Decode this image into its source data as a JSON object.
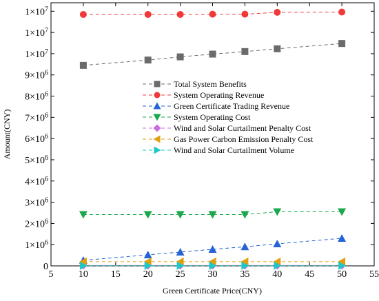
{
  "chart_data": {
    "type": "line",
    "xlabel": "Green Certificate Price(CNY)",
    "ylabel": "Amount(CNY)",
    "xlim": [
      5,
      55
    ],
    "x_ticks": [
      5,
      10,
      15,
      20,
      25,
      30,
      35,
      40,
      45,
      50,
      55
    ],
    "ylim": [
      0,
      12400000
    ],
    "y_ticks": [
      {
        "value": 0,
        "label": "0"
      },
      {
        "value": 1000000,
        "label": "1×10^6"
      },
      {
        "value": 2000000,
        "label": "2×10^6"
      },
      {
        "value": 3000000,
        "label": "3×10^6"
      },
      {
        "value": 4000000,
        "label": "4×10^6"
      },
      {
        "value": 5000000,
        "label": "5×10^6"
      },
      {
        "value": 6000000,
        "label": "6×10^6"
      },
      {
        "value": 7000000,
        "label": "7×10^6"
      },
      {
        "value": 8000000,
        "label": "8×10^6"
      },
      {
        "value": 9000000,
        "label": "9×10^6"
      },
      {
        "value": 10000000,
        "label": "1×10^7"
      },
      {
        "value": 11000000,
        "label": "1×10^7"
      },
      {
        "value": 12000000,
        "label": "1×10^7"
      }
    ],
    "grid": false,
    "legend_position": "center-right",
    "x": [
      10,
      20,
      25,
      30,
      35,
      40,
      50
    ],
    "series": [
      {
        "name": "Total System Benefits",
        "color": "#6b6b6b",
        "marker": "square",
        "values": [
          9450000,
          9700000,
          9850000,
          9980000,
          10100000,
          10230000,
          10480000
        ]
      },
      {
        "name": "System Operating Revenue",
        "color": "#f03a3a",
        "marker": "circle",
        "values": [
          11850000,
          11850000,
          11850000,
          11860000,
          11860000,
          11950000,
          11960000
        ]
      },
      {
        "name": "Green Certificate Trading Revenue",
        "color": "#2563d6",
        "marker": "triangle-up",
        "values": [
          260000,
          520000,
          650000,
          780000,
          900000,
          1040000,
          1300000
        ]
      },
      {
        "name": "System Operating Cost",
        "color": "#1aa84a",
        "marker": "triangle-down",
        "values": [
          2420000,
          2420000,
          2420000,
          2420000,
          2420000,
          2550000,
          2550000
        ]
      },
      {
        "name": "Wind and Solar Curtailment Penalty Cost",
        "color": "#c86ce0",
        "marker": "diamond",
        "values": [
          20000,
          20000,
          20000,
          20000,
          20000,
          20000,
          20000
        ]
      },
      {
        "name": "Gas Power Carbon Emission Penalty Cost",
        "color": "#e0a010",
        "marker": "triangle-left",
        "values": [
          200000,
          200000,
          200000,
          200000,
          200000,
          200000,
          200000
        ]
      },
      {
        "name": "Wind and Solar Curtailment Volume",
        "color": "#1fc8c8",
        "marker": "triangle-right",
        "values": [
          10000,
          10000,
          10000,
          10000,
          10000,
          10000,
          10000
        ]
      }
    ]
  }
}
